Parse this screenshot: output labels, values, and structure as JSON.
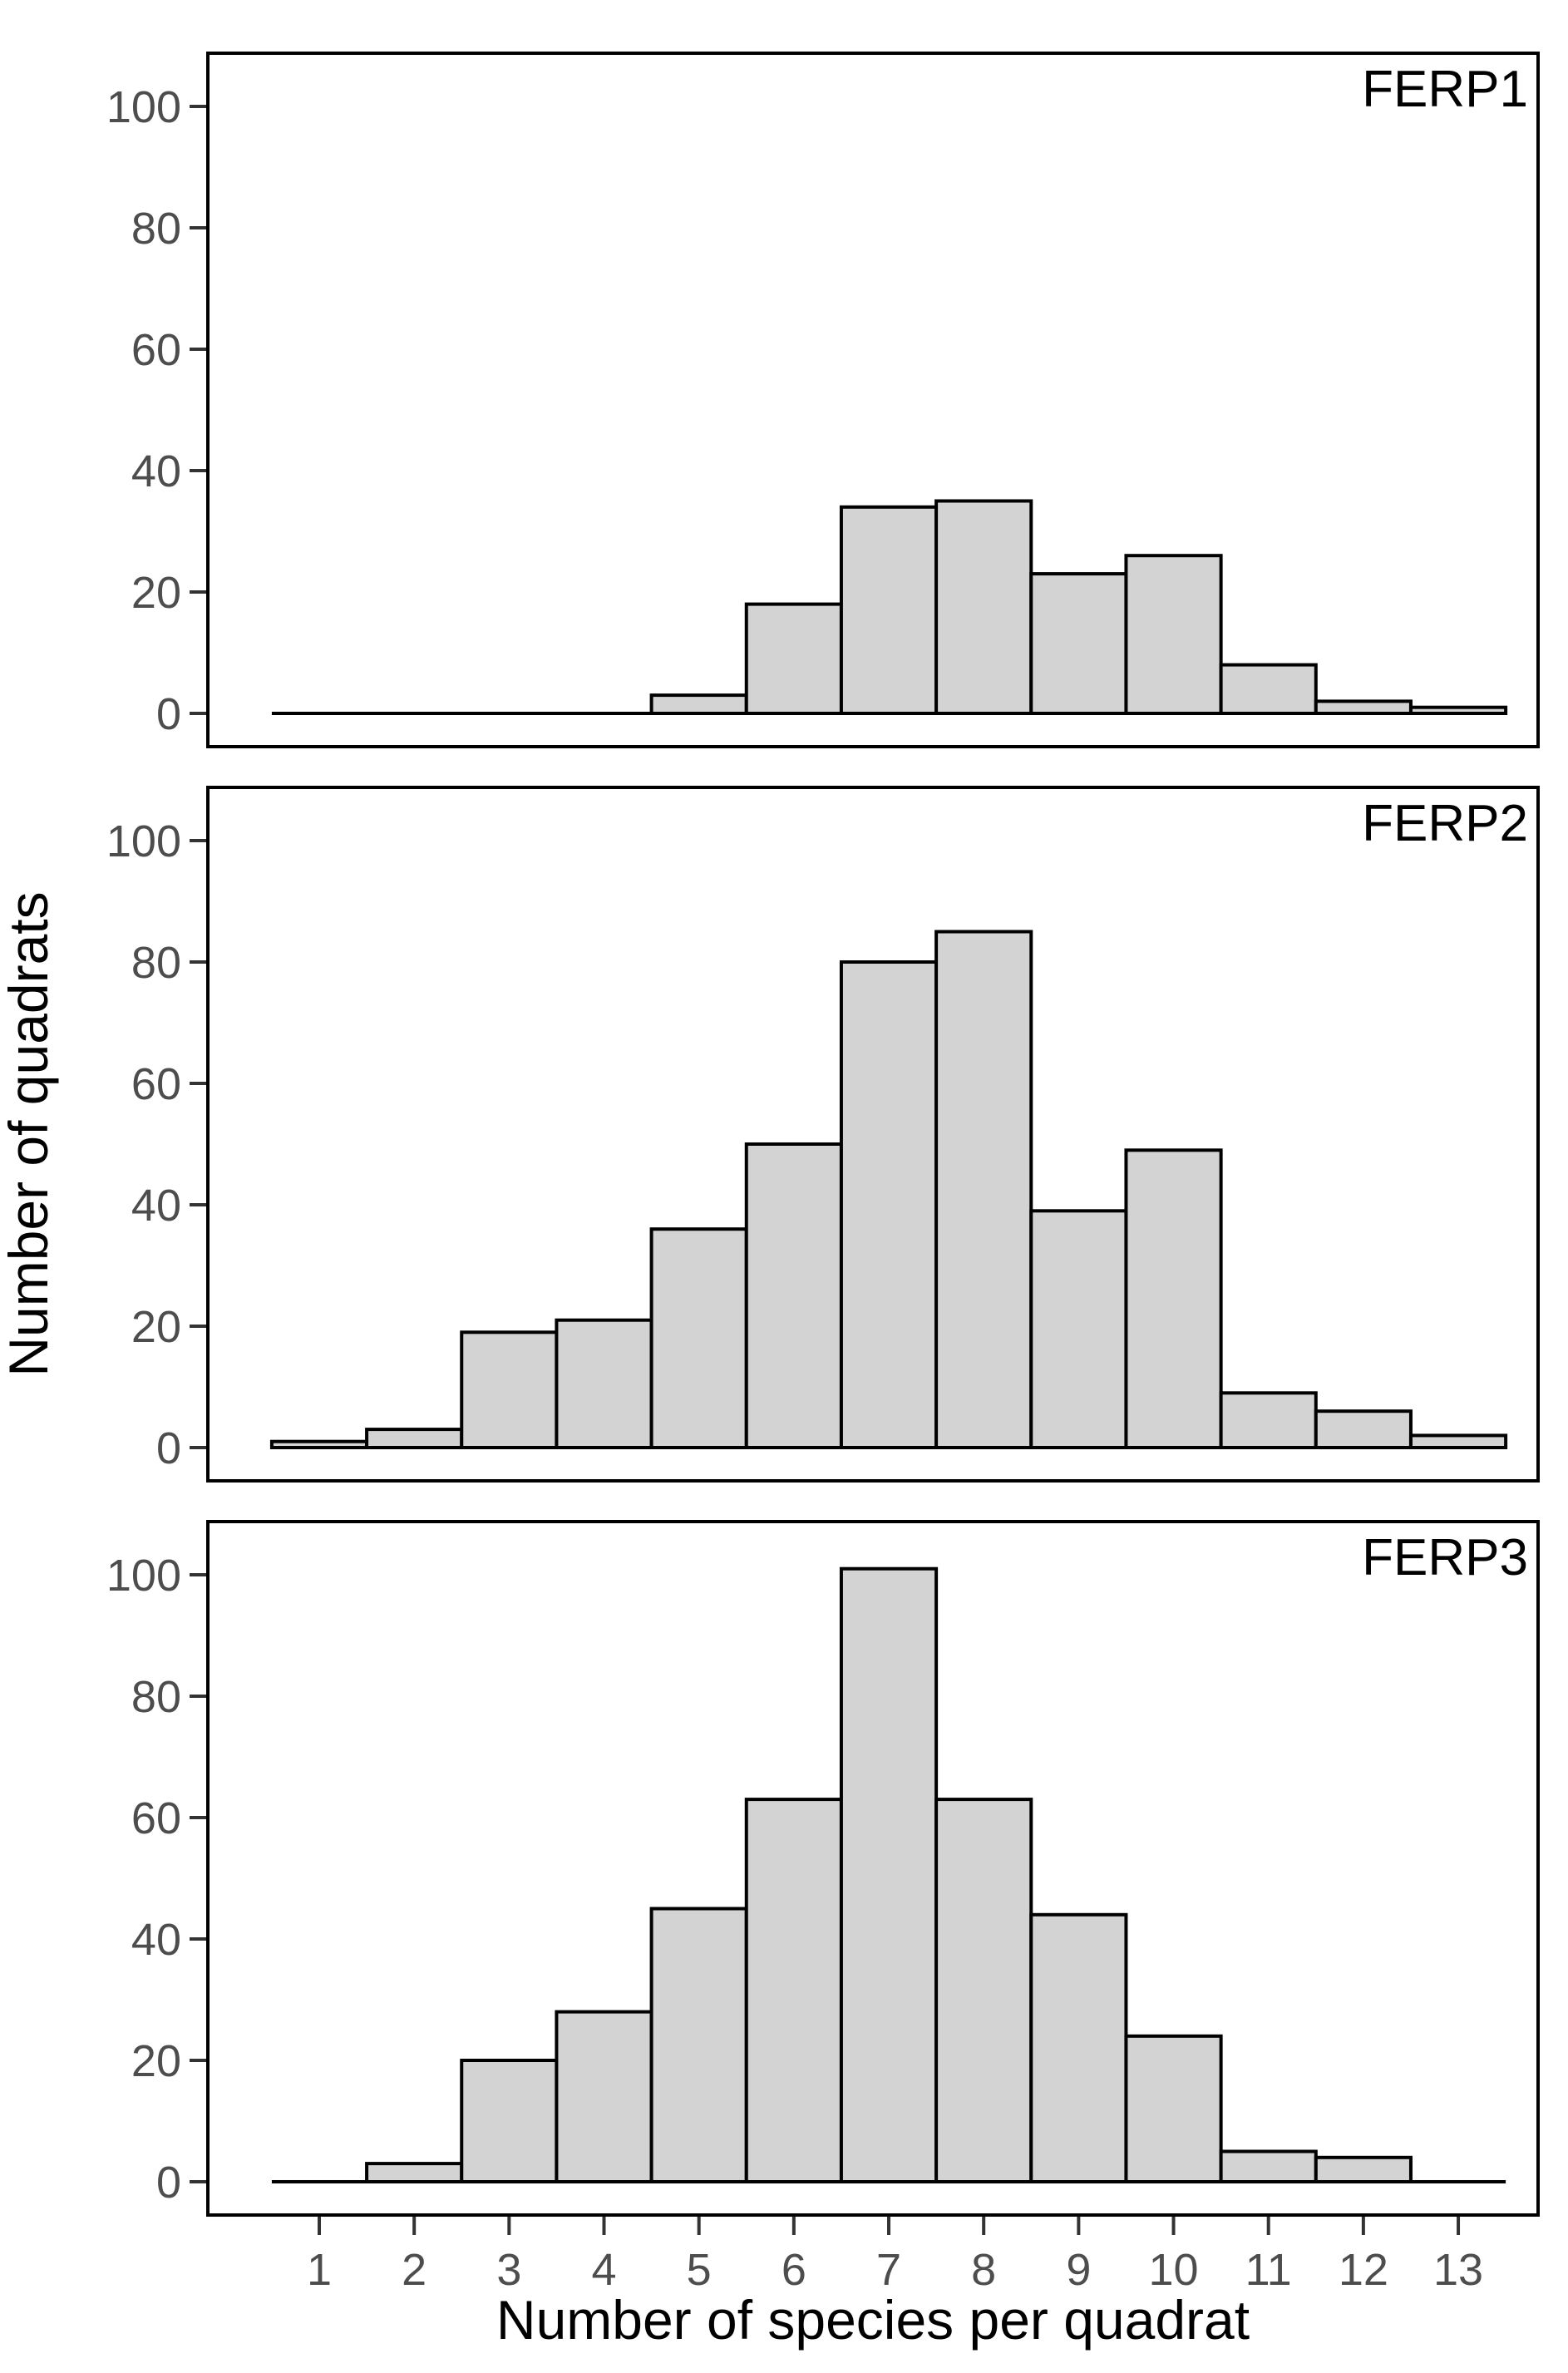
{
  "figure": {
    "x_axis_title": "Number of species per quadrat",
    "y_axis_title": "Number of quadrats",
    "x_tick_labels": [
      "1",
      "2",
      "3",
      "4",
      "5",
      "6",
      "7",
      "8",
      "9",
      "10",
      "11",
      "12",
      "13"
    ],
    "y_tick_labels": [
      "0",
      "20",
      "40",
      "60",
      "80",
      "100"
    ],
    "y_tick_values": [
      0,
      20,
      40,
      60,
      80,
      100
    ],
    "colors": {
      "background": "#ffffff",
      "bar_fill": "#d3d3d3",
      "bar_stroke": "#000000",
      "panel_border": "#000000",
      "tick_mark": "#333333",
      "tick_label": "#4d4d4d",
      "title_text": "#000000"
    }
  },
  "chart_data": [
    {
      "type": "bar",
      "title": "FERP1",
      "categories": [
        1,
        2,
        3,
        4,
        5,
        6,
        7,
        8,
        9,
        10,
        11,
        12,
        13
      ],
      "values": [
        0,
        0,
        0,
        0,
        3,
        18,
        34,
        35,
        23,
        26,
        8,
        2,
        1
      ],
      "xlabel": "Number of species per quadrat",
      "ylabel": "Number of quadrats",
      "ylim": [
        0,
        109
      ],
      "yticks": [
        0,
        20,
        40,
        60,
        80,
        100
      ],
      "grid": "off",
      "legend": "none",
      "annotation": "panel label top-right"
    },
    {
      "type": "bar",
      "title": "FERP2",
      "categories": [
        1,
        2,
        3,
        4,
        5,
        6,
        7,
        8,
        9,
        10,
        11,
        12,
        13
      ],
      "values": [
        1,
        3,
        19,
        21,
        36,
        50,
        80,
        85,
        39,
        49,
        9,
        6,
        2
      ],
      "xlabel": "Number of species per quadrat",
      "ylabel": "Number of quadrats",
      "ylim": [
        0,
        109
      ],
      "yticks": [
        0,
        20,
        40,
        60,
        80,
        100
      ],
      "grid": "off",
      "legend": "none",
      "annotation": "panel label top-right"
    },
    {
      "type": "bar",
      "title": "FERP3",
      "categories": [
        1,
        2,
        3,
        4,
        5,
        6,
        7,
        8,
        9,
        10,
        11,
        12,
        13
      ],
      "values": [
        0,
        3,
        20,
        28,
        45,
        63,
        101,
        63,
        44,
        24,
        5,
        4,
        0
      ],
      "xlabel": "Number of species per quadrat",
      "ylabel": "Number of quadrats",
      "ylim": [
        0,
        109
      ],
      "yticks": [
        0,
        20,
        40,
        60,
        80,
        100
      ],
      "grid": "off",
      "legend": "none",
      "annotation": "panel label top-right"
    }
  ]
}
